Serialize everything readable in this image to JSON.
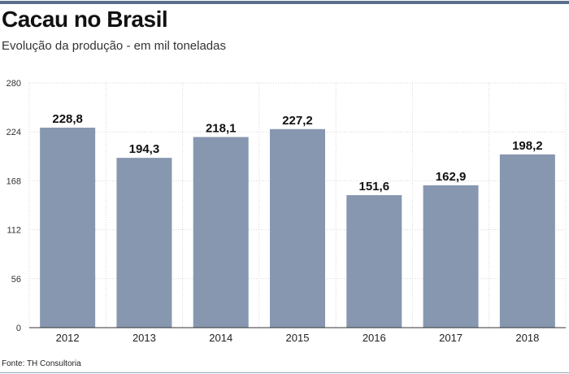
{
  "header": {
    "title": "Cacau no Brasil",
    "subtitle": "Evolução da produção - em mil toneladas"
  },
  "footer": {
    "source": "Fonte: TH Consultoria"
  },
  "colors": {
    "bar": "#8797b0",
    "rule": "#5a6f8c",
    "grid": "#d6d6d6"
  },
  "chart_data": {
    "type": "bar",
    "title": "Cacau no Brasil",
    "subtitle": "Evolução da produção - em mil toneladas",
    "xlabel": "",
    "ylabel": "",
    "categories": [
      "2012",
      "2013",
      "2014",
      "2015",
      "2016",
      "2017",
      "2018"
    ],
    "values": [
      228.8,
      194.3,
      218.1,
      227.2,
      151.6,
      162.9,
      198.2
    ],
    "value_labels": [
      "228,8",
      "194,3",
      "218,1",
      "227,2",
      "151,6",
      "162,9",
      "198,2"
    ],
    "ylim": [
      0,
      280
    ],
    "yticks": [
      0,
      56,
      112,
      168,
      224,
      280
    ],
    "grid": true,
    "legend": "none"
  }
}
